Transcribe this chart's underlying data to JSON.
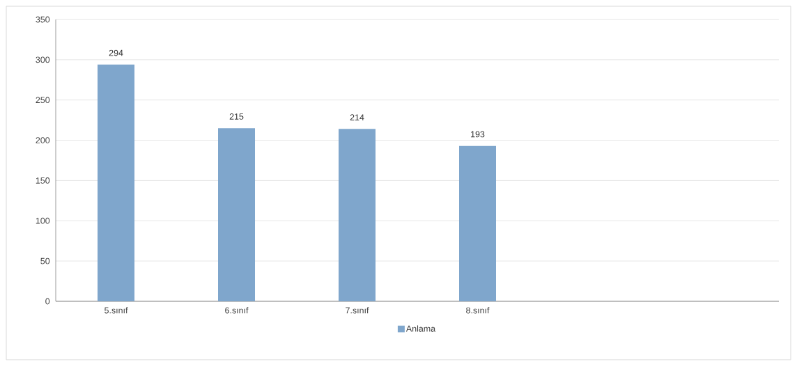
{
  "chart_data": {
    "type": "bar",
    "categories": [
      "5.sınıf",
      "6.sınıf",
      "7.sınıf",
      "8.sınıf",
      null,
      null
    ],
    "series": [
      {
        "name": "Anlama",
        "color": "#7fa6cc",
        "values": [
          294,
          215,
          214,
          193,
          null,
          null
        ]
      }
    ],
    "ylim": [
      0,
      350
    ],
    "yticks": [
      0,
      50,
      100,
      150,
      200,
      250,
      300,
      350
    ],
    "grid": "y",
    "legend": "bottom",
    "data_labels": true
  }
}
